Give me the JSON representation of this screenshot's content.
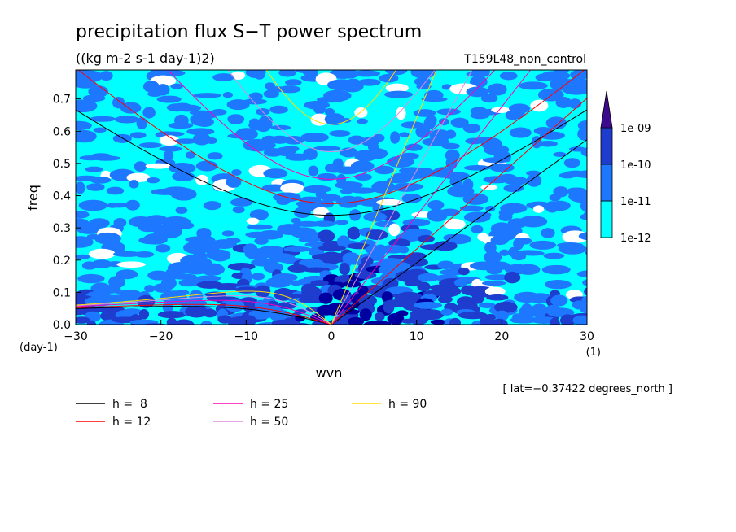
{
  "chart_data": {
    "type": "heatmap",
    "title": "precipitation flux S−T power spectrum",
    "subtitle": "((kg m-2 s-1 day-1)2)",
    "run_label": "T159L48_non_control",
    "xlabel": "wvn",
    "ylabel": "freq",
    "x_unit": "(1)",
    "y_unit": "(day-1)",
    "xlim": [
      -30,
      30
    ],
    "ylim": [
      0,
      0.79
    ],
    "x_ticks": [
      "−30",
      "−20",
      "−10",
      "0",
      "10",
      "20",
      "30"
    ],
    "y_ticks": [
      "0.0",
      "0.1",
      "0.2",
      "0.3",
      "0.4",
      "0.5",
      "0.6",
      "0.7"
    ],
    "annotation": "[ lat=−0.37422 degrees_north ]",
    "colorbar": {
      "labels": [
        "1e-12",
        "1e-11",
        "1e-10",
        "1e-09"
      ],
      "colors": [
        "#00ffff",
        "#1e78ff",
        "#1e3ccd",
        "#0000a0",
        "#3c0a8c"
      ]
    },
    "background_color": "#00ffff",
    "dispersion_curves": [
      {
        "name": "h =  8",
        "h": 8,
        "color": "#000000"
      },
      {
        "name": "h = 12",
        "h": 12,
        "color": "#ff0000"
      },
      {
        "name": "h = 25",
        "h": 25,
        "color": "#ff00b4"
      },
      {
        "name": "h = 50",
        "h": 50,
        "color": "#dc8cdc"
      },
      {
        "name": "h = 90",
        "h": 90,
        "color": "#ffdc00"
      }
    ]
  }
}
